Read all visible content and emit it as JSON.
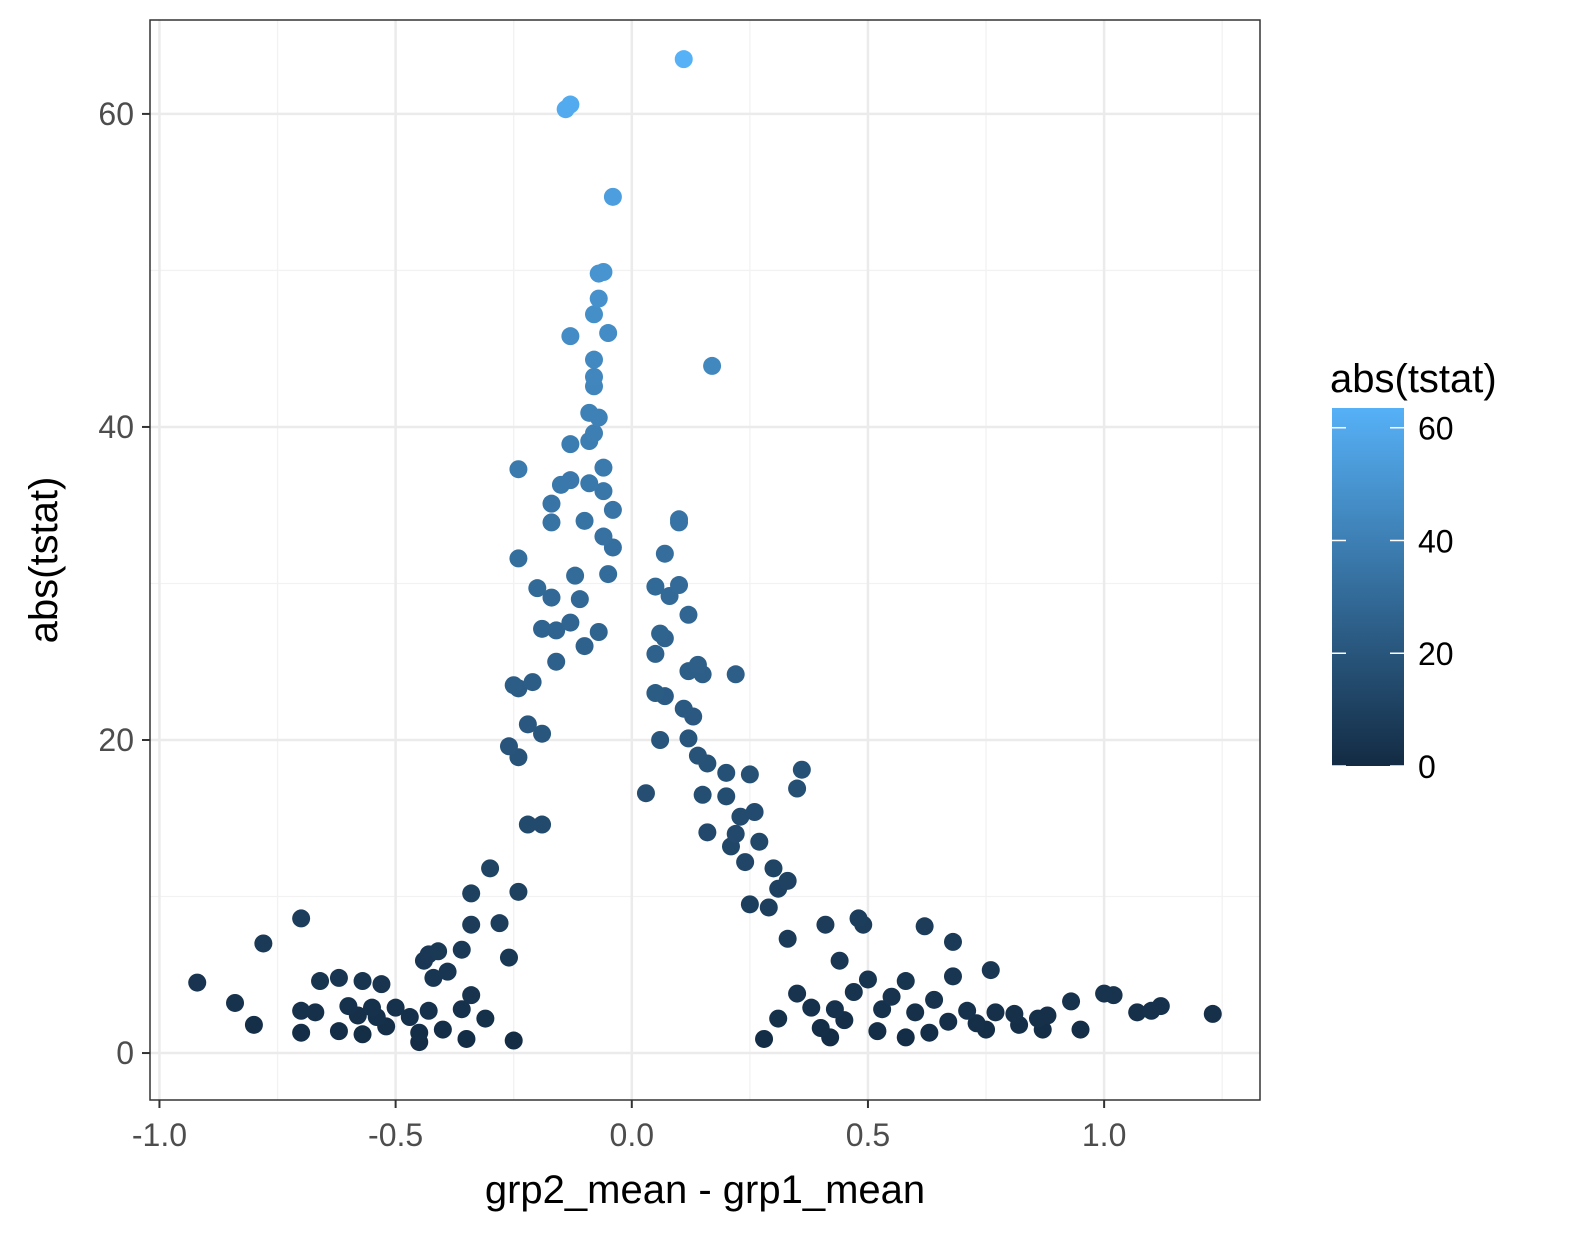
{
  "chart_data": {
    "type": "scatter",
    "title": "",
    "xlabel": "grp2_mean - grp1_mean",
    "ylabel": "abs(tstat)",
    "xlim": [
      -1.02,
      1.33
    ],
    "ylim": [
      -3,
      66
    ],
    "x_ticks": [
      -1.0,
      -0.5,
      0.0,
      0.5,
      1.0
    ],
    "x_tick_labels": [
      "-1.0",
      "-0.5",
      "0.0",
      "0.5",
      "1.0"
    ],
    "y_ticks": [
      0,
      20,
      40,
      60
    ],
    "y_tick_labels": [
      "0",
      "20",
      "40",
      "60"
    ],
    "grid": true,
    "colorbar": {
      "title": "abs(tstat)",
      "min": 0,
      "max": 63.5,
      "low_color": "#132B43",
      "high_color": "#56B1F7",
      "ticks": [
        0,
        20,
        40,
        60
      ],
      "tick_labels": [
        "0",
        "20",
        "40",
        "60"
      ],
      "position": "right"
    },
    "points": [
      {
        "x": 0.11,
        "y": 63.5
      },
      {
        "x": -0.13,
        "y": 60.6
      },
      {
        "x": -0.14,
        "y": 60.3
      },
      {
        "x": -0.04,
        "y": 54.7
      },
      {
        "x": -0.06,
        "y": 49.9
      },
      {
        "x": -0.07,
        "y": 49.8
      },
      {
        "x": -0.07,
        "y": 48.2
      },
      {
        "x": -0.08,
        "y": 47.2
      },
      {
        "x": -0.05,
        "y": 46.0
      },
      {
        "x": -0.13,
        "y": 45.8
      },
      {
        "x": 0.17,
        "y": 43.9
      },
      {
        "x": -0.08,
        "y": 44.3
      },
      {
        "x": -0.08,
        "y": 43.2
      },
      {
        "x": -0.08,
        "y": 42.6
      },
      {
        "x": -0.09,
        "y": 40.9
      },
      {
        "x": -0.07,
        "y": 40.6
      },
      {
        "x": -0.08,
        "y": 39.6
      },
      {
        "x": -0.09,
        "y": 39.1
      },
      {
        "x": -0.13,
        "y": 38.9
      },
      {
        "x": -0.06,
        "y": 37.4
      },
      {
        "x": -0.24,
        "y": 37.3
      },
      {
        "x": -0.13,
        "y": 36.6
      },
      {
        "x": -0.15,
        "y": 36.3
      },
      {
        "x": -0.09,
        "y": 36.4
      },
      {
        "x": -0.06,
        "y": 35.9
      },
      {
        "x": -0.17,
        "y": 35.1
      },
      {
        "x": -0.04,
        "y": 34.7
      },
      {
        "x": -0.1,
        "y": 34.0
      },
      {
        "x": -0.17,
        "y": 33.9
      },
      {
        "x": 0.1,
        "y": 34.1
      },
      {
        "x": 0.1,
        "y": 33.9
      },
      {
        "x": -0.06,
        "y": 33.0
      },
      {
        "x": -0.04,
        "y": 32.3
      },
      {
        "x": 0.07,
        "y": 31.9
      },
      {
        "x": -0.24,
        "y": 31.6
      },
      {
        "x": -0.12,
        "y": 30.5
      },
      {
        "x": -0.05,
        "y": 30.6
      },
      {
        "x": -0.2,
        "y": 29.7
      },
      {
        "x": 0.05,
        "y": 29.8
      },
      {
        "x": 0.1,
        "y": 29.9
      },
      {
        "x": 0.08,
        "y": 29.2
      },
      {
        "x": -0.17,
        "y": 29.1
      },
      {
        "x": -0.11,
        "y": 29.0
      },
      {
        "x": 0.12,
        "y": 28.0
      },
      {
        "x": -0.13,
        "y": 27.5
      },
      {
        "x": -0.19,
        "y": 27.1
      },
      {
        "x": -0.16,
        "y": 27.0
      },
      {
        "x": -0.07,
        "y": 26.9
      },
      {
        "x": 0.06,
        "y": 26.8
      },
      {
        "x": 0.07,
        "y": 26.5
      },
      {
        "x": -0.1,
        "y": 26.0
      },
      {
        "x": 0.05,
        "y": 25.5
      },
      {
        "x": -0.16,
        "y": 25.0
      },
      {
        "x": 0.14,
        "y": 24.8
      },
      {
        "x": 0.12,
        "y": 24.4
      },
      {
        "x": 0.15,
        "y": 24.2
      },
      {
        "x": 0.22,
        "y": 24.2
      },
      {
        "x": -0.21,
        "y": 23.7
      },
      {
        "x": -0.25,
        "y": 23.5
      },
      {
        "x": -0.24,
        "y": 23.3
      },
      {
        "x": 0.05,
        "y": 23.0
      },
      {
        "x": 0.07,
        "y": 22.8
      },
      {
        "x": 0.11,
        "y": 22.0
      },
      {
        "x": 0.13,
        "y": 21.5
      },
      {
        "x": -0.22,
        "y": 21.0
      },
      {
        "x": -0.19,
        "y": 20.4
      },
      {
        "x": 0.06,
        "y": 20.0
      },
      {
        "x": 0.12,
        "y": 20.1
      },
      {
        "x": -0.26,
        "y": 19.6
      },
      {
        "x": -0.24,
        "y": 18.9
      },
      {
        "x": 0.14,
        "y": 19.0
      },
      {
        "x": 0.16,
        "y": 18.5
      },
      {
        "x": 0.2,
        "y": 17.9
      },
      {
        "x": 0.25,
        "y": 17.8
      },
      {
        "x": 0.36,
        "y": 18.1
      },
      {
        "x": 0.35,
        "y": 16.9
      },
      {
        "x": 0.03,
        "y": 16.6
      },
      {
        "x": 0.15,
        "y": 16.5
      },
      {
        "x": 0.2,
        "y": 16.4
      },
      {
        "x": 0.26,
        "y": 15.4
      },
      {
        "x": 0.23,
        "y": 15.1
      },
      {
        "x": -0.22,
        "y": 14.6
      },
      {
        "x": -0.19,
        "y": 14.6
      },
      {
        "x": 0.16,
        "y": 14.1
      },
      {
        "x": 0.22,
        "y": 14.0
      },
      {
        "x": 0.27,
        "y": 13.5
      },
      {
        "x": 0.21,
        "y": 13.2
      },
      {
        "x": -0.3,
        "y": 11.8
      },
      {
        "x": 0.3,
        "y": 11.8
      },
      {
        "x": 0.24,
        "y": 12.2
      },
      {
        "x": 0.33,
        "y": 11.0
      },
      {
        "x": 0.31,
        "y": 10.5
      },
      {
        "x": -0.34,
        "y": 10.2
      },
      {
        "x": -0.24,
        "y": 10.3
      },
      {
        "x": 0.25,
        "y": 9.5
      },
      {
        "x": 0.29,
        "y": 9.3
      },
      {
        "x": -0.7,
        "y": 8.6
      },
      {
        "x": -0.34,
        "y": 8.2
      },
      {
        "x": -0.28,
        "y": 8.3
      },
      {
        "x": 0.41,
        "y": 8.2
      },
      {
        "x": 0.48,
        "y": 8.6
      },
      {
        "x": 0.49,
        "y": 8.2
      },
      {
        "x": 0.62,
        "y": 8.1
      },
      {
        "x": -0.78,
        "y": 7.0
      },
      {
        "x": 0.33,
        "y": 7.3
      },
      {
        "x": 0.68,
        "y": 7.1
      },
      {
        "x": -0.43,
        "y": 6.3
      },
      {
        "x": -0.41,
        "y": 6.5
      },
      {
        "x": -0.36,
        "y": 6.6
      },
      {
        "x": -0.26,
        "y": 6.1
      },
      {
        "x": 0.44,
        "y": 5.9
      },
      {
        "x": -0.44,
        "y": 5.9
      },
      {
        "x": -0.42,
        "y": 4.8
      },
      {
        "x": -0.39,
        "y": 5.2
      },
      {
        "x": 0.5,
        "y": 4.7
      },
      {
        "x": 0.58,
        "y": 4.6
      },
      {
        "x": 0.68,
        "y": 4.9
      },
      {
        "x": 0.76,
        "y": 5.3
      },
      {
        "x": -0.92,
        "y": 4.5
      },
      {
        "x": -0.66,
        "y": 4.6
      },
      {
        "x": -0.62,
        "y": 4.8
      },
      {
        "x": -0.57,
        "y": 4.6
      },
      {
        "x": -0.53,
        "y": 4.4
      },
      {
        "x": -0.34,
        "y": 3.7
      },
      {
        "x": 0.35,
        "y": 3.8
      },
      {
        "x": 0.47,
        "y": 3.9
      },
      {
        "x": 0.55,
        "y": 3.6
      },
      {
        "x": 0.64,
        "y": 3.4
      },
      {
        "x": 1.0,
        "y": 3.8
      },
      {
        "x": 1.02,
        "y": 3.7
      },
      {
        "x": -0.84,
        "y": 3.2
      },
      {
        "x": -0.6,
        "y": 3.0
      },
      {
        "x": -0.55,
        "y": 2.9
      },
      {
        "x": -0.5,
        "y": 2.9
      },
      {
        "x": -0.43,
        "y": 2.7
      },
      {
        "x": -0.36,
        "y": 2.8
      },
      {
        "x": 0.38,
        "y": 2.9
      },
      {
        "x": 0.43,
        "y": 2.8
      },
      {
        "x": 0.53,
        "y": 2.8
      },
      {
        "x": 0.6,
        "y": 2.6
      },
      {
        "x": 0.71,
        "y": 2.7
      },
      {
        "x": 0.77,
        "y": 2.6
      },
      {
        "x": 0.81,
        "y": 2.5
      },
      {
        "x": 0.93,
        "y": 3.3
      },
      {
        "x": 1.12,
        "y": 3.0
      },
      {
        "x": 1.1,
        "y": 2.7
      },
      {
        "x": 1.07,
        "y": 2.6
      },
      {
        "x": 1.23,
        "y": 2.5
      },
      {
        "x": 0.88,
        "y": 2.4
      },
      {
        "x": 0.86,
        "y": 2.2
      },
      {
        "x": -0.67,
        "y": 2.6
      },
      {
        "x": -0.7,
        "y": 2.7
      },
      {
        "x": -0.58,
        "y": 2.4
      },
      {
        "x": -0.54,
        "y": 2.3
      },
      {
        "x": -0.47,
        "y": 2.3
      },
      {
        "x": -0.31,
        "y": 2.2
      },
      {
        "x": 0.31,
        "y": 2.2
      },
      {
        "x": 0.45,
        "y": 2.1
      },
      {
        "x": 0.67,
        "y": 2.0
      },
      {
        "x": 0.73,
        "y": 1.9
      },
      {
        "x": 0.82,
        "y": 1.8
      },
      {
        "x": 0.95,
        "y": 1.5
      },
      {
        "x": -0.8,
        "y": 1.8
      },
      {
        "x": -0.62,
        "y": 1.4
      },
      {
        "x": -0.57,
        "y": 1.2
      },
      {
        "x": -0.52,
        "y": 1.7
      },
      {
        "x": -0.7,
        "y": 1.3
      },
      {
        "x": -0.45,
        "y": 1.3
      },
      {
        "x": -0.4,
        "y": 1.5
      },
      {
        "x": 0.4,
        "y": 1.6
      },
      {
        "x": 0.52,
        "y": 1.4
      },
      {
        "x": 0.63,
        "y": 1.3
      },
      {
        "x": 0.75,
        "y": 1.5
      },
      {
        "x": 0.87,
        "y": 1.5
      },
      {
        "x": -0.45,
        "y": 0.7
      },
      {
        "x": -0.35,
        "y": 0.9
      },
      {
        "x": -0.25,
        "y": 0.8
      },
      {
        "x": 0.28,
        "y": 0.9
      },
      {
        "x": 0.42,
        "y": 1.0
      },
      {
        "x": 0.58,
        "y": 1.0
      }
    ]
  }
}
